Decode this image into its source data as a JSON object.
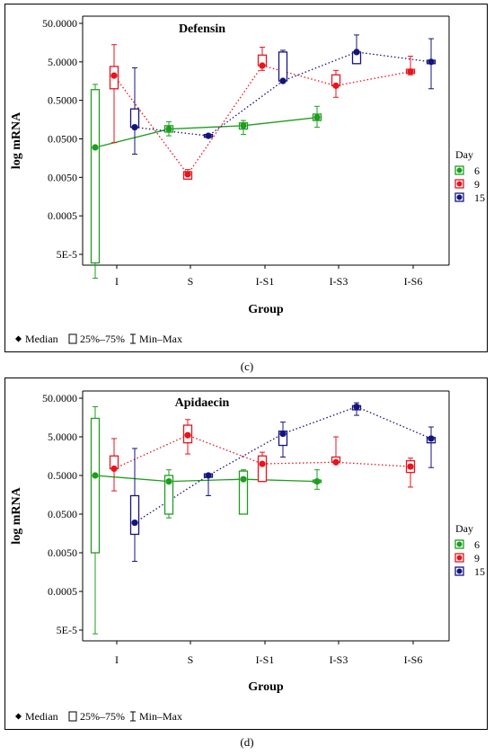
{
  "chart_data": [
    {
      "type": "box",
      "title": "Defensin",
      "xlabel": "Group",
      "ylabel": "log mRNA",
      "y_scale": "log",
      "y_ticks": [
        "50.0000",
        "5.0000",
        "0.5000",
        "0.0500",
        "0.0050",
        "0.0005",
        "5E-5"
      ],
      "categories": [
        "I",
        "S",
        "I-S1",
        "I-S3",
        "I-S6"
      ],
      "legend_title": "Day",
      "legend_bottom": [
        "Median",
        "25%–75%",
        "Min–Max"
      ],
      "caption": "(c)",
      "series": [
        {
          "name": "6",
          "color": "#1e9e1e",
          "line": "solid",
          "values": [
            {
              "x": "I",
              "median": 0.03,
              "q1": 3e-05,
              "q3": 0.95,
              "min": 1.2e-05,
              "max": 1.3
            },
            {
              "x": "S",
              "median": 0.09,
              "q1": 0.075,
              "q3": 0.11,
              "min": 0.06,
              "max": 0.14
            },
            {
              "x": "I-S1",
              "median": 0.11,
              "q1": 0.09,
              "q3": 0.13,
              "min": 0.065,
              "max": 0.15
            },
            {
              "x": "I-S3",
              "median": 0.18,
              "q1": 0.15,
              "q3": 0.22,
              "min": 0.1,
              "max": 0.35
            }
          ]
        },
        {
          "name": "9",
          "color": "#e8141e",
          "line": "dotted",
          "values": [
            {
              "x": "I",
              "median": 2.2,
              "q1": 1.0,
              "q3": 3.8,
              "min": 0.04,
              "max": 14.0
            },
            {
              "x": "S",
              "median": 0.006,
              "q1": 0.0045,
              "q3": 0.007,
              "min": 0.0045,
              "max": 0.008
            },
            {
              "x": "I-S1",
              "median": 4.0,
              "q1": 4.0,
              "q3": 7.5,
              "min": 3.0,
              "max": 12.0
            },
            {
              "x": "I-S3",
              "median": 1.2,
              "q1": 1.2,
              "q3": 2.3,
              "min": 0.6,
              "max": 3.0
            },
            {
              "x": "I-S6",
              "median": 2.8,
              "q1": 2.5,
              "q3": 3.2,
              "min": 2.3,
              "max": 7.0
            }
          ]
        },
        {
          "name": "15",
          "color": "#14147e",
          "line": "dotted",
          "values": [
            {
              "x": "I",
              "median": 0.1,
              "q1": 0.1,
              "q3": 0.3,
              "min": 0.02,
              "max": 3.5
            },
            {
              "x": "S",
              "median": 0.06,
              "q1": 0.055,
              "q3": 0.065,
              "min": 0.055,
              "max": 0.065
            },
            {
              "x": "I-S1",
              "median": 1.6,
              "q1": 1.6,
              "q3": 9.0,
              "min": 1.6,
              "max": 10.0
            },
            {
              "x": "I-S3",
              "median": 9.0,
              "q1": 4.5,
              "q3": 9.0,
              "min": 4.5,
              "max": 25.0
            },
            {
              "x": "I-S6",
              "median": 5.0,
              "q1": 4.5,
              "q3": 5.5,
              "min": 1.0,
              "max": 20.0
            }
          ]
        }
      ]
    },
    {
      "type": "box",
      "title": "Apidaecin",
      "xlabel": "Group",
      "ylabel": "log mRNA",
      "y_scale": "log",
      "y_ticks": [
        "50.0000",
        "5.0000",
        "0.5000",
        "0.0500",
        "0.0050",
        "0.0005",
        "5E-5"
      ],
      "categories": [
        "I",
        "S",
        "I-S1",
        "I-S3",
        "I-S6"
      ],
      "legend_title": "Day",
      "legend_bottom": [
        "Median",
        "25%–75%",
        "Min–Max"
      ],
      "caption": "(d)",
      "series": [
        {
          "name": "6",
          "color": "#1e9e1e",
          "line": "solid",
          "values": [
            {
              "x": "I",
              "median": 0.5,
              "q1": 0.005,
              "q3": 15.0,
              "min": 4e-05,
              "max": 30.0
            },
            {
              "x": "S",
              "median": 0.35,
              "q1": 0.05,
              "q3": 0.5,
              "min": 0.04,
              "max": 0.7
            },
            {
              "x": "I-S1",
              "median": 0.4,
              "q1": 0.05,
              "q3": 0.65,
              "min": 0.05,
              "max": 0.7
            },
            {
              "x": "I-S3",
              "median": 0.35,
              "q1": 0.33,
              "q3": 0.38,
              "min": 0.22,
              "max": 0.7
            }
          ]
        },
        {
          "name": "9",
          "color": "#e8141e",
          "line": "dotted",
          "values": [
            {
              "x": "I",
              "median": 0.75,
              "q1": 0.75,
              "q3": 1.6,
              "min": 0.2,
              "max": 4.5
            },
            {
              "x": "S",
              "median": 5.5,
              "q1": 3.5,
              "q3": 10.0,
              "min": 1.8,
              "max": 14.0
            },
            {
              "x": "I-S1",
              "median": 1.0,
              "q1": 0.35,
              "q3": 1.6,
              "min": 0.35,
              "max": 2.0
            },
            {
              "x": "I-S3",
              "median": 1.1,
              "q1": 1.1,
              "q3": 1.5,
              "min": 1.1,
              "max": 5.0
            },
            {
              "x": "I-S6",
              "median": 0.85,
              "q1": 0.6,
              "q3": 1.2,
              "min": 0.25,
              "max": 1.4
            }
          ]
        },
        {
          "name": "15",
          "color": "#14147e",
          "line": "dotted",
          "values": [
            {
              "x": "I",
              "median": 0.03,
              "q1": 0.015,
              "q3": 0.15,
              "min": 0.003,
              "max": 2.5
            },
            {
              "x": "S",
              "median": 0.5,
              "q1": 0.45,
              "q3": 0.55,
              "min": 0.15,
              "max": 0.55
            },
            {
              "x": "I-S1",
              "median": 6.0,
              "q1": 3.0,
              "q3": 7.0,
              "min": 1.5,
              "max": 12.0
            },
            {
              "x": "I-S3",
              "median": 30.0,
              "q1": 25.0,
              "q3": 32.0,
              "min": 18.0,
              "max": 38.0
            },
            {
              "x": "I-S6",
              "median": 4.5,
              "q1": 3.5,
              "q3": 4.8,
              "min": 0.8,
              "max": 9.0
            }
          ]
        }
      ]
    }
  ]
}
